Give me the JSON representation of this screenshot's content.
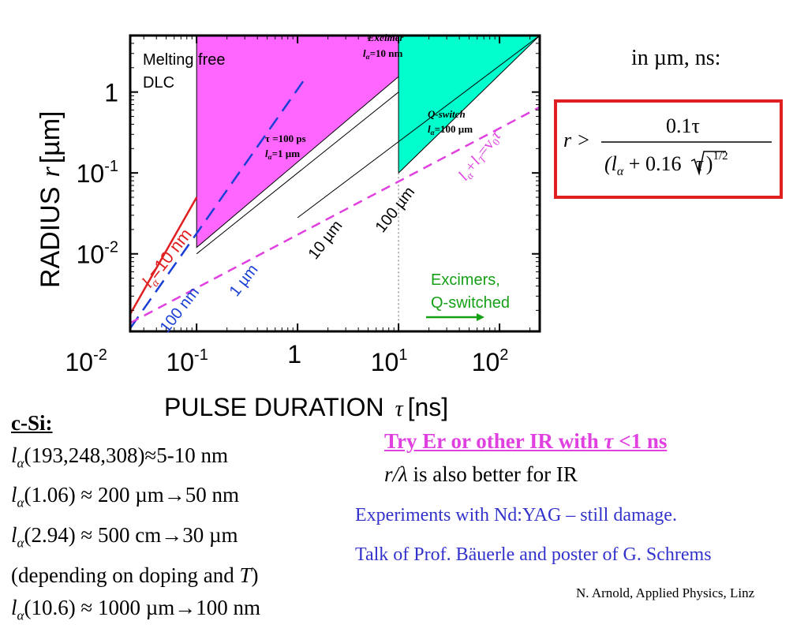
{
  "chart_data": {
    "type": "line",
    "xscale": "log",
    "yscale": "log",
    "xlim": [
      0.022,
      250
    ],
    "ylim": [
      0.0011,
      5
    ],
    "xticks": [
      {
        "value": 0.01,
        "base": "10",
        "exp": "-2"
      },
      {
        "value": 0.1,
        "base": "10",
        "exp": "-1"
      },
      {
        "value": 1,
        "base": "1",
        "exp": ""
      },
      {
        "value": 10,
        "base": "10",
        "exp": "1"
      },
      {
        "value": 100,
        "base": "10",
        "exp": "2"
      }
    ],
    "yticks": [
      {
        "value": 1,
        "base": "1",
        "exp": ""
      },
      {
        "value": 0.1,
        "base": "10",
        "exp": "-1"
      },
      {
        "value": 0.01,
        "base": "10",
        "exp": "-2"
      }
    ],
    "xlabel": "PULSE DURATION",
    "xlabel_symbol": "τ",
    "xlabel_unit": "[ns]",
    "ylabel": "RADIUS",
    "ylabel_symbol": "r",
    "ylabel_unit": "[µm]",
    "series": [
      {
        "color": "#e02020",
        "style": "solid",
        "x": [
          0.022,
          0.1
        ],
        "y": [
          0.0018,
          0.05
        ]
      },
      {
        "color": "#1a3fd6",
        "style": "dashed",
        "x": [
          0.022,
          1.2
        ],
        "y": [
          0.0012,
          1.5
        ]
      },
      {
        "color": "#e040e0",
        "style": "dashed",
        "x": [
          0.022,
          250
        ],
        "y": [
          0.0014,
          0.65
        ]
      },
      {
        "color": "#000000",
        "style": "solid",
        "x": [
          0.1,
          10
        ],
        "y": [
          0.01,
          1
        ]
      },
      {
        "color": "#000000",
        "style": "solid",
        "x": [
          1,
          250
        ],
        "y": [
          0.028,
          5
        ]
      }
    ],
    "regions": [
      {
        "name": "tau-100ps",
        "color": "#ff66ff",
        "points": [
          [
            0.1,
            5
          ],
          [
            0.1,
            0.012
          ],
          [
            10,
            1.55
          ],
          [
            10,
            5
          ]
        ]
      },
      {
        "name": "excimer",
        "color": "#ff6b6b",
        "points": [
          [
            10,
            5
          ],
          [
            10,
            1.55
          ],
          [
            25,
            5
          ]
        ]
      },
      {
        "name": "q-switch",
        "color": "#00ffcc",
        "points": [
          [
            10,
            5
          ],
          [
            10,
            0.1
          ],
          [
            250,
            5
          ]
        ]
      }
    ],
    "annotations": {
      "melting_free_1": "Melting free",
      "melting_free_2": "DLC",
      "excimer_title": "Excimer",
      "excimer_l": "l",
      "excimer_sub": "α",
      "excimer_val": "=10 nm",
      "qswitch_title": "Q-switch",
      "qswitch_l": "l",
      "qswitch_sub": "α",
      "qswitch_val": "=100 µm",
      "tau_line": "τ =100 ps",
      "tau_l": "l",
      "tau_sub": "α",
      "tau_val": "=1 µm",
      "red_l": "l",
      "red_sub": "α",
      "red_val": "=10 nm",
      "blue_100nm": "100 nm",
      "blue_1um": "1 µm",
      "black_10um": "10 µm",
      "black_100um": "100 µm",
      "magenta_eq": "l",
      "magenta_eq_sub1": "α",
      "magenta_eq_mid": "+l",
      "magenta_eq_sub2": "T",
      "magenta_eq_end": "=v",
      "magenta_eq_sub3": "0",
      "magenta_eq_tau": "τ",
      "excimers_qs_1": "Excimers,",
      "excimers_qs_2": "Q-switched"
    },
    "colors": {
      "red": "#e02020",
      "blue": "#1a3fd6",
      "magenta": "#e040e0",
      "green": "#16a016",
      "magenta_fill": "#ff66ff",
      "cyan_fill": "#00ffcc",
      "salmon_fill": "#ff6b6b"
    }
  },
  "units_note": "in µm, ns:",
  "formula": {
    "lhs": "r >",
    "numerator": "0.1τ",
    "den_open": "(l",
    "den_sub": "α",
    "den_mid": " + 0.16",
    "den_root": "τ",
    "den_close": ")",
    "den_exp": "1/2"
  },
  "csi": {
    "header": "c-Si:",
    "lines": [
      {
        "l": "l",
        "sub": "α",
        "rest": "(193,248,308)≈5-10 nm"
      },
      {
        "l": "l",
        "sub": "α",
        "rest": "(1.06) ≈ 200 µm→50 nm"
      },
      {
        "l": "l",
        "sub": "α",
        "rest": "(2.94) ≈ 500 cm→30 µm"
      },
      {
        "plain": "(depending on doping and ",
        "italic": "T",
        "close": ")"
      },
      {
        "l": "l",
        "sub": "α",
        "rest": "(10.6) ≈ 1000 µm→100 nm"
      }
    ]
  },
  "notes": {
    "try_text": "Try Er or other IR with ",
    "try_tau": "τ",
    "try_end": " <1 ns",
    "ir_r": "r/λ",
    "ir_rest": " is also better for IR",
    "experiments": "Experiments with Nd:YAG – still damage.",
    "talk": "Talk of Prof. Bäuerle and poster of G. Schrems"
  },
  "credit": "N. Arnold, Applied Physics, Linz"
}
